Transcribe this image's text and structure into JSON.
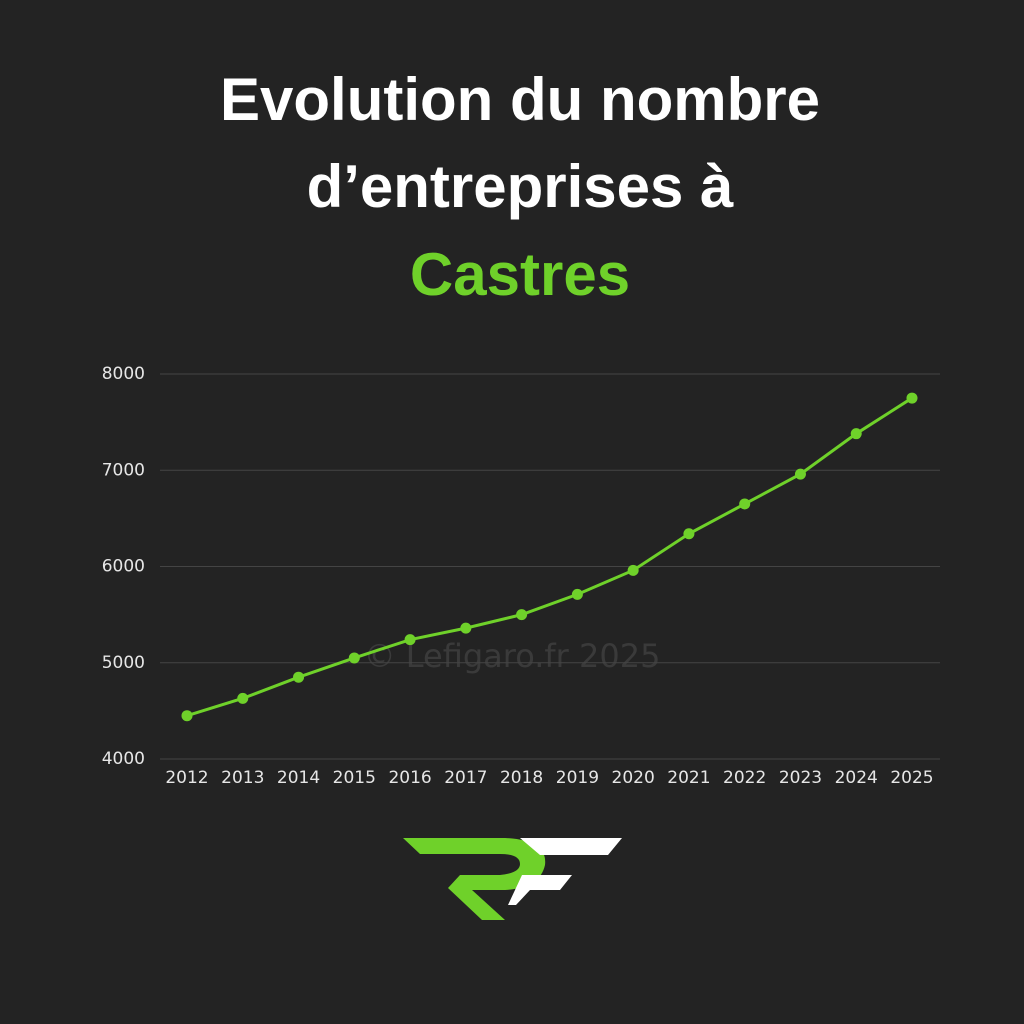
{
  "chart_data": {
    "type": "line",
    "title": "Evolution du nombre d’entreprises à",
    "title_highlight": "Castres",
    "watermark": "© Lefigaro.fr 2025",
    "categories": [
      "2012",
      "2013",
      "2014",
      "2015",
      "2016",
      "2017",
      "2018",
      "2019",
      "2020",
      "2021",
      "2022",
      "2023",
      "2024",
      "2025"
    ],
    "values": [
      4450,
      4630,
      4850,
      5050,
      5240,
      5360,
      5500,
      5710,
      5960,
      6340,
      6650,
      6960,
      7380,
      7750
    ],
    "color": "#6fd12a",
    "ylim": [
      4000,
      8000
    ],
    "yticks": [
      4000,
      5000,
      6000,
      7000,
      8000
    ],
    "grid": true
  }
}
